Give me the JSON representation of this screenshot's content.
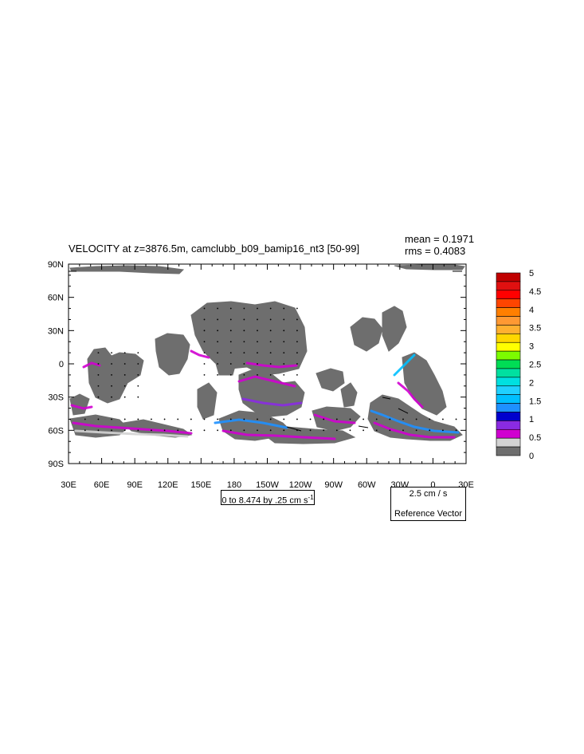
{
  "chart_data": {
    "type": "heatmap",
    "title": "VELOCITY at z=3876.5m, camclubb_b09_bamip16_nt3 [50-99]",
    "stats": {
      "mean": "mean = 0.1971",
      "rms": "rms = 0.4083"
    },
    "x_ticks": [
      "30E",
      "60E",
      "90E",
      "120E",
      "150E",
      "180",
      "150W",
      "120W",
      "90W",
      "60W",
      "30W",
      "0",
      "30E"
    ],
    "x_tick_values": [
      30,
      60,
      90,
      120,
      150,
      180,
      210,
      240,
      270,
      300,
      330,
      360,
      390
    ],
    "y_ticks": [
      "90N",
      "60N",
      "30N",
      "0",
      "30S",
      "60S",
      "90S"
    ],
    "y_tick_values": [
      90,
      60,
      30,
      0,
      -30,
      -60,
      -90
    ],
    "xlim": [
      30,
      390
    ],
    "ylim": [
      -90,
      90
    ],
    "grid": false,
    "legend_position": "right",
    "colorbar": {
      "labels": [
        "5",
        "4.5",
        "4",
        "3.5",
        "3",
        "2.5",
        "2",
        "1.5",
        "1",
        "0.5",
        "0"
      ],
      "levels": [
        0,
        0.25,
        0.5,
        0.75,
        1,
        1.25,
        1.5,
        1.75,
        2,
        2.25,
        2.5,
        2.75,
        3,
        3.25,
        3.5,
        3.75,
        4,
        4.25,
        4.5,
        4.75,
        5
      ],
      "colors": [
        "#6e6e6e",
        "#d3d3d3",
        "#d000d0",
        "#8a2be2",
        "#0000cd",
        "#1e90ff",
        "#00bfff",
        "#20d0ff",
        "#00e0e0",
        "#00e0a0",
        "#00dd55",
        "#7cfc00",
        "#ffff00",
        "#ffd700",
        "#ffb030",
        "#ff9933",
        "#ff7f00",
        "#ff4500",
        "#ff0000",
        "#e01010",
        "#c00000"
      ]
    },
    "contour_info": "0 to 8.474 by .25 cm s",
    "contour_info_sup": "-1",
    "reference_vector": {
      "magnitude": "2.5 cm / s",
      "label": "Reference Vector"
    }
  }
}
